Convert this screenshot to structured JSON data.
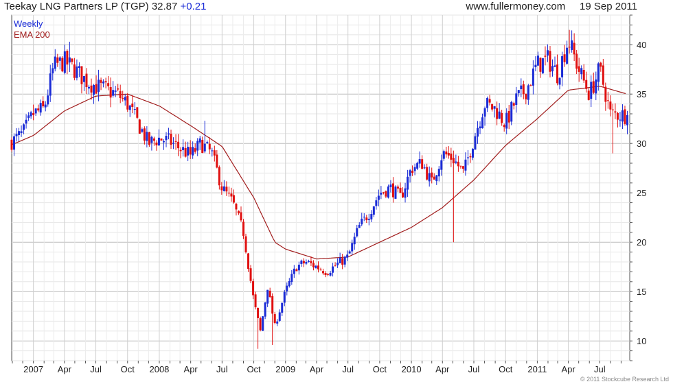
{
  "header": {
    "title": "Teekay LNG Partners LP (TGP)",
    "last_price": "32.87",
    "change": "+0.21",
    "source": "www.fullermoney.com",
    "date": "19 Sep 2011"
  },
  "legend": {
    "period": "Weekly",
    "indicator": "EMA 200"
  },
  "copyright": "© 2011 Stockcube Research Ltd",
  "colors": {
    "up": "#1a2bd6",
    "down": "#e01010",
    "ema": "#a11d1d",
    "grid": "#c8c8c8",
    "frame": "#555555"
  },
  "chart_data": {
    "type": "candlestick",
    "period": "weekly",
    "ylim": [
      8,
      43
    ],
    "y_ticks": [
      10,
      15,
      20,
      25,
      30,
      35,
      40
    ],
    "y_axis_side": "right",
    "x_tick_labels": [
      "2007",
      "Apr",
      "Jul",
      "Oct",
      "2008",
      "Apr",
      "Jul",
      "Oct",
      "2009",
      "Apr",
      "Jul",
      "Oct",
      "2010",
      "Apr",
      "Jul",
      "Oct",
      "2011",
      "Apr",
      "Jul"
    ],
    "x_tick_months": [
      "2007-01",
      "2007-04",
      "2007-07",
      "2007-10",
      "2008-01",
      "2008-04",
      "2008-07",
      "2008-10",
      "2009-01",
      "2009-04",
      "2009-07",
      "2009-10",
      "2010-01",
      "2010-04",
      "2010-07",
      "2010-10",
      "2011-01",
      "2011-04",
      "2011-07"
    ],
    "x_range": [
      "2006-10-30",
      "2011-09-26"
    ],
    "grid": true,
    "close_anchors": [
      [
        "2006-11-01",
        30.2
      ],
      [
        "2006-12-01",
        31.0
      ],
      [
        "2007-01-01",
        33.0
      ],
      [
        "2007-02-01",
        33.5
      ],
      [
        "2007-03-01",
        37.8
      ],
      [
        "2007-04-01",
        38.3
      ],
      [
        "2007-05-01",
        37.5
      ],
      [
        "2007-06-01",
        36.4
      ],
      [
        "2007-07-01",
        35.8
      ],
      [
        "2007-08-01",
        35.4
      ],
      [
        "2007-09-01",
        35.0
      ],
      [
        "2007-10-01",
        34.0
      ],
      [
        "2007-11-01",
        32.0
      ],
      [
        "2007-12-01",
        30.0
      ],
      [
        "2008-01-01",
        30.5
      ],
      [
        "2008-02-01",
        30.2
      ],
      [
        "2008-03-01",
        29.5
      ],
      [
        "2008-04-01",
        28.8
      ],
      [
        "2008-05-01",
        30.0
      ],
      [
        "2008-06-01",
        29.0
      ],
      [
        "2008-07-01",
        25.5
      ],
      [
        "2008-08-01",
        24.0
      ],
      [
        "2008-09-01",
        21.0
      ],
      [
        "2008-10-01",
        14.0
      ],
      [
        "2008-10-20",
        11.0
      ],
      [
        "2008-11-10",
        15.5
      ],
      [
        "2008-12-01",
        11.5
      ],
      [
        "2009-01-01",
        15.0
      ],
      [
        "2009-02-01",
        17.5
      ],
      [
        "2009-03-01",
        18.0
      ],
      [
        "2009-04-01",
        17.5
      ],
      [
        "2009-05-01",
        17.0
      ],
      [
        "2009-06-01",
        17.8
      ],
      [
        "2009-07-01",
        18.5
      ],
      [
        "2009-08-01",
        21.5
      ],
      [
        "2009-09-01",
        23.0
      ],
      [
        "2009-10-01",
        25.0
      ],
      [
        "2009-11-01",
        25.5
      ],
      [
        "2009-12-01",
        24.5
      ],
      [
        "2010-01-01",
        27.5
      ],
      [
        "2010-02-01",
        28.0
      ],
      [
        "2010-03-01",
        26.0
      ],
      [
        "2010-04-01",
        29.0
      ],
      [
        "2010-05-01",
        28.5
      ],
      [
        "2010-06-01",
        27.0
      ],
      [
        "2010-07-01",
        30.5
      ],
      [
        "2010-08-01",
        34.0
      ],
      [
        "2010-09-01",
        33.5
      ],
      [
        "2010-10-01",
        32.0
      ],
      [
        "2010-11-01",
        34.5
      ],
      [
        "2010-12-01",
        35.5
      ],
      [
        "2011-01-01",
        38.0
      ],
      [
        "2011-02-01",
        38.5
      ],
      [
        "2011-03-01",
        37.0
      ],
      [
        "2011-04-01",
        40.5
      ],
      [
        "2011-05-01",
        37.5
      ],
      [
        "2011-06-01",
        35.0
      ],
      [
        "2011-07-01",
        37.5
      ],
      [
        "2011-08-01",
        33.0
      ],
      [
        "2011-09-19",
        32.87
      ]
    ],
    "notable_lows": [
      [
        "2008-10-13",
        9.2
      ],
      [
        "2008-11-24",
        9.6
      ],
      [
        "2010-05-03",
        20.0
      ],
      [
        "2011-08-08",
        29.0
      ]
    ],
    "notable_highs": [
      [
        "2007-04-16",
        40.3
      ],
      [
        "2008-05-12",
        32.3
      ],
      [
        "2011-04-04",
        41.5
      ]
    ],
    "ema_anchors": [
      [
        "2006-11-01",
        29.9
      ],
      [
        "2007-01-01",
        30.8
      ],
      [
        "2007-04-01",
        33.3
      ],
      [
        "2007-07-01",
        34.8
      ],
      [
        "2007-10-01",
        35.0
      ],
      [
        "2008-01-01",
        33.8
      ],
      [
        "2008-04-01",
        31.8
      ],
      [
        "2008-07-01",
        29.7
      ],
      [
        "2008-10-01",
        24.5
      ],
      [
        "2008-12-01",
        20.0
      ],
      [
        "2009-01-01",
        19.3
      ],
      [
        "2009-04-01",
        18.3
      ],
      [
        "2009-07-01",
        18.5
      ],
      [
        "2009-10-01",
        20.0
      ],
      [
        "2010-01-01",
        21.5
      ],
      [
        "2010-04-01",
        23.5
      ],
      [
        "2010-07-01",
        26.3
      ],
      [
        "2010-10-01",
        29.8
      ],
      [
        "2011-01-01",
        32.5
      ],
      [
        "2011-04-01",
        35.4
      ],
      [
        "2011-07-01",
        35.8
      ],
      [
        "2011-09-19",
        35.0
      ]
    ],
    "last_close": 32.87
  }
}
